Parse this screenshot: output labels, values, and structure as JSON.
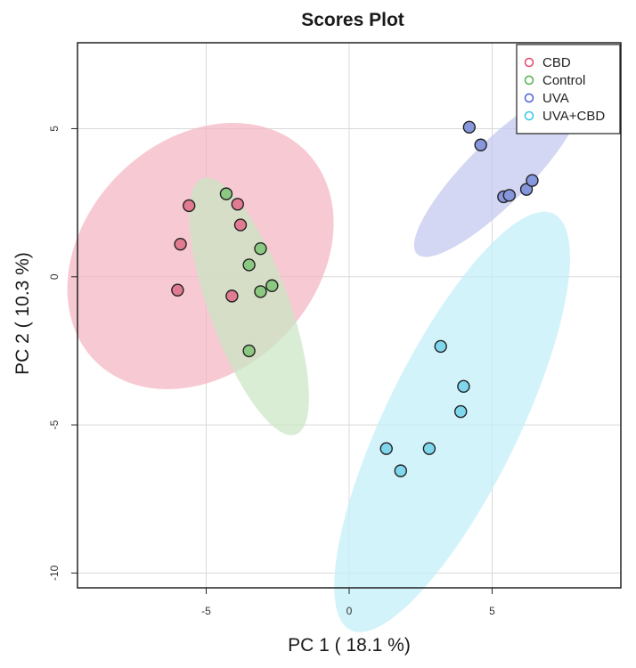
{
  "chart_data": {
    "type": "scatter",
    "title": "Scores Plot",
    "xlabel": "PC 1 ( 18.1 %)",
    "ylabel": "PC 2 ( 10.3 %)",
    "xlim": [
      -9.5,
      9.5
    ],
    "ylim": [
      -10.5,
      7.9
    ],
    "xticks": [
      -5,
      0,
      5
    ],
    "yticks": [
      -10,
      -5,
      0,
      5
    ],
    "grid": true,
    "legend_position": "top-right",
    "series": [
      {
        "name": "CBD",
        "color": "#e8446a",
        "fill": "#e07b91",
        "ellipse_fill": "#f4b6c2",
        "x": [
          -5.6,
          -5.9,
          -6.0,
          -4.1,
          -3.8,
          -3.9
        ],
        "y": [
          2.4,
          1.1,
          -0.45,
          -0.65,
          1.75,
          2.45
        ],
        "ellipse": {
          "cx": -5.2,
          "cy": 0.7,
          "rx": 5.2,
          "ry": 3.9,
          "angle_deg": -45
        }
      },
      {
        "name": "Control",
        "color": "#52b24c",
        "fill": "#8bc982",
        "ellipse_fill": "#c9e6c3",
        "x": [
          -4.3,
          -3.1,
          -3.5,
          -3.1,
          -2.7,
          -3.5
        ],
        "y": [
          2.8,
          0.95,
          0.4,
          -0.5,
          -0.3,
          -2.5
        ],
        "ellipse": {
          "cx": -3.5,
          "cy": -1.0,
          "rx": 1.4,
          "ry": 4.6,
          "angle_deg": -20
        }
      },
      {
        "name": "UVA",
        "color": "#4a63d8",
        "fill": "#8697dc",
        "ellipse_fill": "#c2c8ef",
        "x": [
          4.2,
          4.6,
          5.4,
          5.6,
          6.2,
          6.4
        ],
        "y": [
          5.05,
          4.45,
          2.7,
          2.75,
          2.95,
          3.25
        ],
        "ellipse": {
          "cx": 5.2,
          "cy": 3.5,
          "rx": 4.0,
          "ry": 1.05,
          "angle_deg": -45
        }
      },
      {
        "name": "UVA+CBD",
        "color": "#39c6e6",
        "fill": "#7fd7ec",
        "ellipse_fill": "#c2eef8",
        "x": [
          3.2,
          4.0,
          3.9,
          2.8,
          1.3,
          1.8
        ],
        "y": [
          -2.35,
          -3.7,
          -4.55,
          -5.8,
          -5.8,
          -6.55
        ],
        "ellipse": {
          "cx": 3.6,
          "cy": -4.9,
          "rx": 8.1,
          "ry": 2.25,
          "angle_deg": -64
        }
      }
    ]
  }
}
